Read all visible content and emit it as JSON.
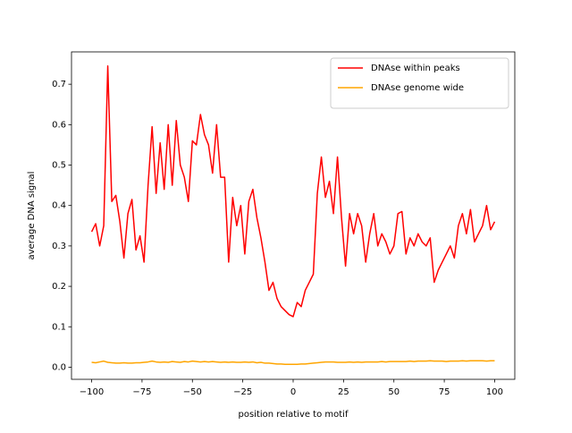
{
  "chart_data": {
    "type": "line",
    "xlabel": "position relative to motif",
    "ylabel": "average DNA signal",
    "x": [
      -100,
      -98,
      -96,
      -94,
      -92,
      -90,
      -88,
      -86,
      -84,
      -82,
      -80,
      -78,
      -76,
      -74,
      -72,
      -70,
      -68,
      -66,
      -64,
      -62,
      -60,
      -58,
      -56,
      -54,
      -52,
      -50,
      -48,
      -46,
      -44,
      -42,
      -40,
      -38,
      -36,
      -34,
      -32,
      -30,
      -28,
      -26,
      -24,
      -22,
      -20,
      -18,
      -16,
      -14,
      -12,
      -10,
      -8,
      -6,
      -4,
      -2,
      0,
      2,
      4,
      6,
      8,
      10,
      12,
      14,
      16,
      18,
      20,
      22,
      24,
      26,
      28,
      30,
      32,
      34,
      36,
      38,
      40,
      42,
      44,
      46,
      48,
      50,
      52,
      54,
      56,
      58,
      60,
      62,
      64,
      66,
      68,
      70,
      72,
      74,
      76,
      78,
      80,
      82,
      84,
      86,
      88,
      90,
      92,
      94,
      96,
      98,
      100
    ],
    "series": [
      {
        "name": "DNAse within peaks",
        "color": "#ff0000",
        "values": [
          0.335,
          0.355,
          0.3,
          0.35,
          0.745,
          0.41,
          0.425,
          0.36,
          0.27,
          0.38,
          0.415,
          0.29,
          0.325,
          0.26,
          0.45,
          0.595,
          0.43,
          0.555,
          0.44,
          0.6,
          0.45,
          0.61,
          0.5,
          0.47,
          0.41,
          0.56,
          0.55,
          0.625,
          0.575,
          0.55,
          0.48,
          0.6,
          0.47,
          0.47,
          0.26,
          0.42,
          0.35,
          0.4,
          0.28,
          0.41,
          0.44,
          0.37,
          0.32,
          0.26,
          0.19,
          0.21,
          0.17,
          0.15,
          0.14,
          0.13,
          0.125,
          0.16,
          0.15,
          0.19,
          0.21,
          0.23,
          0.43,
          0.52,
          0.42,
          0.46,
          0.38,
          0.52,
          0.37,
          0.25,
          0.38,
          0.33,
          0.38,
          0.35,
          0.26,
          0.33,
          0.38,
          0.3,
          0.33,
          0.31,
          0.28,
          0.3,
          0.38,
          0.385,
          0.28,
          0.32,
          0.3,
          0.33,
          0.31,
          0.3,
          0.32,
          0.21,
          0.24,
          0.26,
          0.28,
          0.3,
          0.27,
          0.35,
          0.38,
          0.33,
          0.39,
          0.31,
          0.33,
          0.35,
          0.4,
          0.34,
          0.36
        ]
      },
      {
        "name": "DNAse genome wide",
        "color": "#ffa500",
        "values": [
          0.012,
          0.011,
          0.013,
          0.015,
          0.012,
          0.011,
          0.01,
          0.01,
          0.011,
          0.01,
          0.01,
          0.011,
          0.011,
          0.012,
          0.013,
          0.015,
          0.013,
          0.012,
          0.013,
          0.012,
          0.014,
          0.013,
          0.012,
          0.014,
          0.013,
          0.015,
          0.014,
          0.013,
          0.014,
          0.013,
          0.014,
          0.013,
          0.012,
          0.013,
          0.012,
          0.013,
          0.012,
          0.012,
          0.013,
          0.012,
          0.013,
          0.011,
          0.012,
          0.01,
          0.01,
          0.009,
          0.008,
          0.008,
          0.007,
          0.007,
          0.007,
          0.007,
          0.008,
          0.008,
          0.009,
          0.01,
          0.011,
          0.012,
          0.013,
          0.013,
          0.013,
          0.012,
          0.012,
          0.012,
          0.013,
          0.012,
          0.013,
          0.012,
          0.013,
          0.013,
          0.013,
          0.013,
          0.014,
          0.013,
          0.014,
          0.014,
          0.014,
          0.014,
          0.014,
          0.015,
          0.014,
          0.015,
          0.015,
          0.015,
          0.016,
          0.015,
          0.015,
          0.015,
          0.014,
          0.015,
          0.015,
          0.015,
          0.016,
          0.015,
          0.016,
          0.016,
          0.016,
          0.016,
          0.015,
          0.016,
          0.016
        ]
      }
    ],
    "xlim": [
      -110,
      110
    ],
    "ylim": [
      -0.03,
      0.78
    ],
    "xticks": [
      {
        "value": -100,
        "label": "−100"
      },
      {
        "value": -75,
        "label": "−75"
      },
      {
        "value": -50,
        "label": "−50"
      },
      {
        "value": -25,
        "label": "−25"
      },
      0,
      25,
      50,
      75,
      100
    ],
    "yticks": [
      {
        "value": 0,
        "label": "0.0"
      },
      0.1,
      0.2,
      0.3,
      0.4,
      0.5,
      0.6,
      0.7
    ],
    "legend": "upper right"
  }
}
